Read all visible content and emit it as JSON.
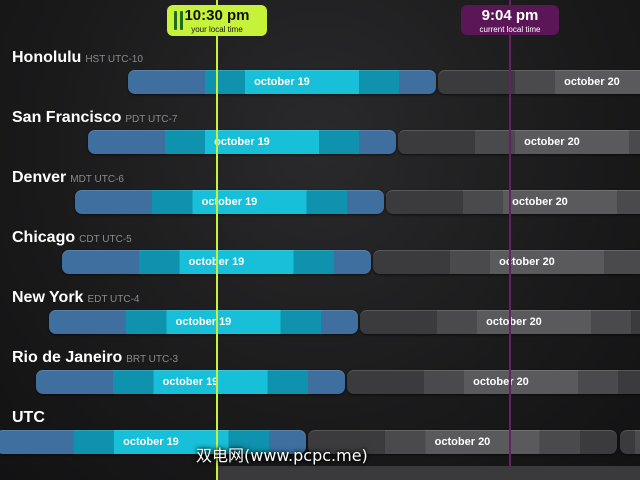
{
  "local_time": {
    "time": "10:30 pm",
    "caption": "your local time"
  },
  "current_time": {
    "time": "9:04 pm",
    "caption": "current local time"
  },
  "colors": {
    "local_marker": "#c6f23a",
    "current_marker": "#5b1657",
    "day_today": "#18bfd8",
    "day_tomorrow": "#5a5a5c"
  },
  "rows": [
    {
      "city": "Honolulu",
      "tz": "HST UTC-10",
      "today": "october 19",
      "tomorrow": "october 20"
    },
    {
      "city": "San Francisco",
      "tz": "PDT UTC-7",
      "today": "october 19",
      "tomorrow": "october 20"
    },
    {
      "city": "Denver",
      "tz": "MDT UTC-6",
      "today": "october 19",
      "tomorrow": "october 20"
    },
    {
      "city": "Chicago",
      "tz": "CDT UTC-5",
      "today": "october 19",
      "tomorrow": "october 20"
    },
    {
      "city": "New York",
      "tz": "EDT UTC-4",
      "today": "october 19",
      "tomorrow": "october 20"
    },
    {
      "city": "Rio de Janeiro",
      "tz": "BRT UTC-3",
      "today": "october 19",
      "tomorrow": "october 20"
    },
    {
      "city": "UTC",
      "tz": "",
      "today": "october 19",
      "tomorrow": "october 20"
    }
  ],
  "watermark": "双电网(www.pcpc.me)"
}
